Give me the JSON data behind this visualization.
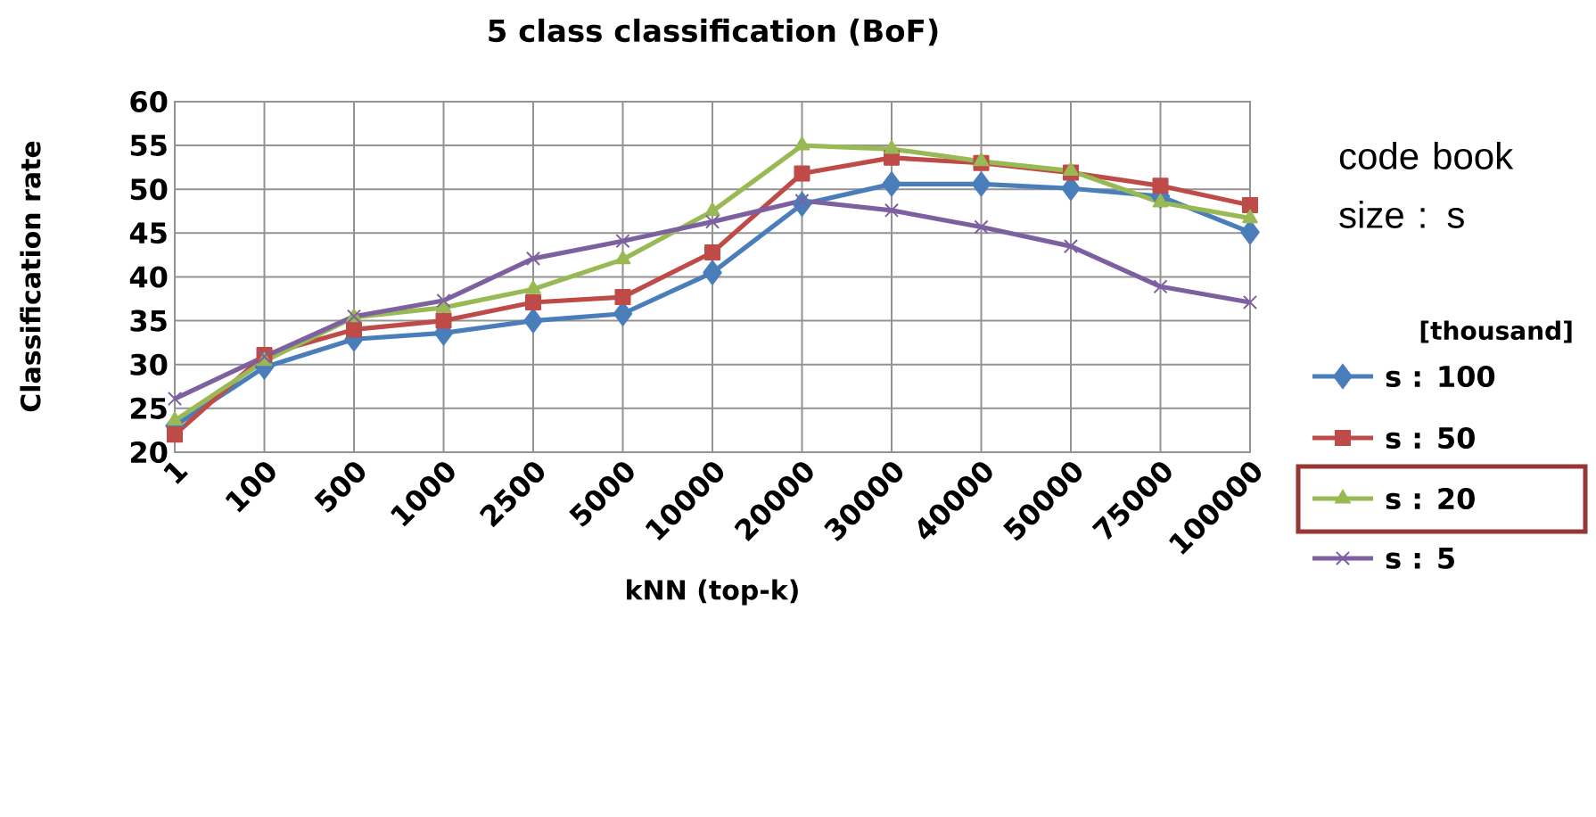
{
  "chart_data": {
    "type": "line",
    "title": "5 class classification (BoF)",
    "xlabel": "kNN (top-k)",
    "ylabel": "Classification rate",
    "legend_title": "code book size : s",
    "annotations": [
      "[thousand]"
    ],
    "categories": [
      "1",
      "100",
      "500",
      "1000",
      "2500",
      "5000",
      "10000",
      "20000",
      "30000",
      "40000",
      "50000",
      "75000",
      "100000"
    ],
    "series": [
      {
        "name": "s : 100",
        "color": "#4a7ebb",
        "marker": "diamond",
        "values": [
          23.0,
          29.7,
          32.9,
          33.6,
          35.0,
          35.8,
          40.5,
          48.3,
          50.6,
          50.6,
          50.1,
          49.2,
          45.1
        ]
      },
      {
        "name": "s : 50",
        "color": "#be4b48",
        "marker": "square",
        "values": [
          22.0,
          31.1,
          34.0,
          35.0,
          37.1,
          37.7,
          42.8,
          51.8,
          53.6,
          53.0,
          51.9,
          50.4,
          48.2
        ]
      },
      {
        "name": "s : 20",
        "color": "#98b954",
        "marker": "triangle",
        "values": [
          23.6,
          30.4,
          35.4,
          36.5,
          38.6,
          42.0,
          47.5,
          55.0,
          54.6,
          53.2,
          52.1,
          48.5,
          46.7
        ]
      },
      {
        "name": "s : 5",
        "color": "#7d60a0",
        "marker": "cross",
        "values": [
          26.1,
          30.9,
          35.5,
          37.3,
          42.1,
          44.1,
          46.3,
          48.7,
          47.6,
          45.7,
          43.5,
          38.9,
          37.1
        ]
      }
    ],
    "ylim": [
      20,
      60
    ],
    "yticks": [
      20,
      25,
      30,
      35,
      40,
      45,
      50,
      55,
      60
    ],
    "grid": true,
    "legend": "right",
    "line_style": "solid"
  }
}
